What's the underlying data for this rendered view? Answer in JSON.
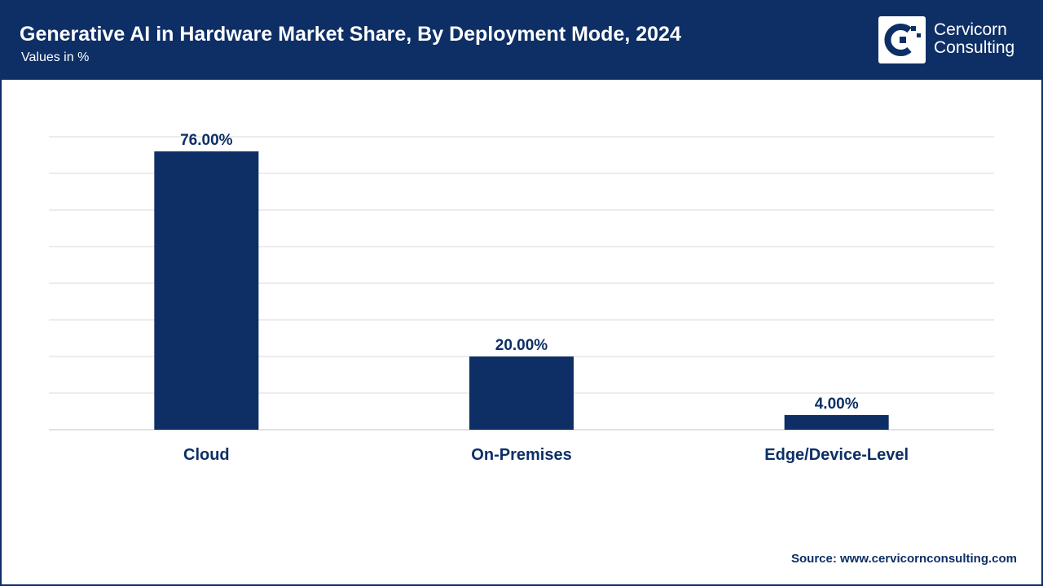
{
  "header": {
    "title": "Generative AI in Hardware Market Share, By Deployment Mode, 2024",
    "subtitle": "Values in %",
    "brand_line1": "Cervicorn",
    "brand_line2": "Consulting"
  },
  "colors": {
    "primary": "#0d2f66",
    "grid": "#d9d9d9",
    "background": "#ffffff"
  },
  "chart_data": {
    "type": "bar",
    "title": "Generative AI in Hardware Market Share, By Deployment Mode, 2024",
    "subtitle": "Values in %",
    "categories": [
      "Cloud",
      "On-Premises",
      "Edge/Device-Level"
    ],
    "values": [
      76.0,
      20.0,
      4.0
    ],
    "value_labels": [
      "76.00%",
      "20.00%",
      "4.00%"
    ],
    "xlabel": "",
    "ylabel": "",
    "ylim": [
      0,
      80
    ],
    "grid_step": 10,
    "grid": true,
    "legend": "none"
  },
  "footer": {
    "source": "Source: www.cervicornconsulting.com"
  }
}
